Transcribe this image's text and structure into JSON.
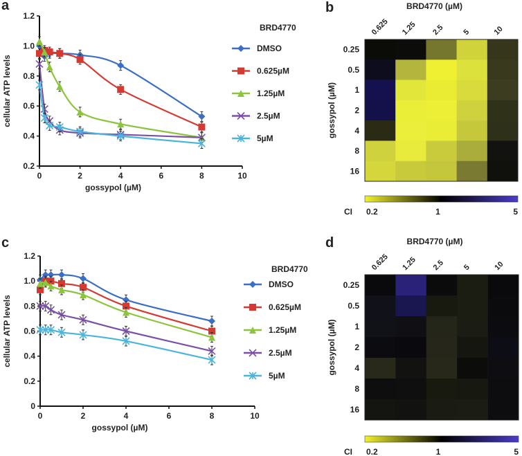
{
  "chart_data": [
    {
      "panel": "a",
      "type": "line",
      "xlabel": "gossypol (µM)",
      "ylabel": "cellular ATP levels",
      "xlim": [
        0,
        10
      ],
      "ylim": [
        0.2,
        1.2
      ],
      "xticks": [
        "0",
        "2",
        "4",
        "6",
        "8",
        "10"
      ],
      "yticks": [
        "0.2",
        "0.4",
        "0.6",
        "0.8",
        "1.0",
        "1.2"
      ],
      "legend_title": "BRD4770",
      "legend_position": "right",
      "x": [
        0,
        0.25,
        0.5,
        1,
        2,
        4,
        8
      ],
      "series": [
        {
          "name": "DMSO",
          "color": "#3a6fc4",
          "marker": "diamond",
          "values": [
            1.0,
            0.93,
            0.95,
            0.95,
            0.94,
            0.87,
            0.53
          ]
        },
        {
          "name": "0.625µM",
          "color": "#d43a32",
          "marker": "square",
          "values": [
            0.95,
            0.97,
            0.96,
            0.95,
            0.91,
            0.71,
            0.46
          ]
        },
        {
          "name": "1.25µM",
          "color": "#8cc43c",
          "marker": "triangle",
          "values": [
            1.03,
            0.96,
            0.86,
            0.73,
            0.56,
            0.48,
            0.39
          ]
        },
        {
          "name": "2.5µM",
          "color": "#7b4fa8",
          "marker": "x",
          "values": [
            0.88,
            0.58,
            0.5,
            0.44,
            0.42,
            0.41,
            0.39
          ]
        },
        {
          "name": "5µM",
          "color": "#4bb4dc",
          "marker": "star",
          "values": [
            0.74,
            0.52,
            0.47,
            0.46,
            0.43,
            0.4,
            0.35
          ]
        }
      ]
    },
    {
      "panel": "b",
      "type": "heatmap",
      "title": "BRD4770 (µM)",
      "ylabel": "gossypol (µM)",
      "columns": [
        "0.625",
        "1.25",
        "2.5",
        "5",
        "10"
      ],
      "rows": [
        "0.25",
        "0.5",
        "1",
        "2",
        "4",
        "8",
        "16"
      ],
      "colorbar_label": "CI",
      "colorbar_ticks": [
        "0.2",
        "1",
        "5"
      ],
      "colorbar_colors": [
        "#f2f22a",
        "#000000",
        "#4a3cc8"
      ],
      "cell_colors": [
        [
          "#0b0b08",
          "#0c0c0a",
          "#76772e",
          "#d0d33a",
          "#36361c"
        ],
        [
          "#0e0d1e",
          "#b4b53c",
          "#eef031",
          "#dde13c",
          "#393a1d"
        ],
        [
          "#14114e",
          "#e3e63a",
          "#eaec33",
          "#d8db3b",
          "#3c3d20"
        ],
        [
          "#13104a",
          "#ebee36",
          "#ecef35",
          "#cfd23c",
          "#303119"
        ],
        [
          "#2b2b15",
          "#ebee3a",
          "#eaed36",
          "#c6c83c",
          "#2f301a"
        ],
        [
          "#cfd23d",
          "#e8eb3c",
          "#c9cb3d",
          "#aaac3c",
          "#121210"
        ],
        [
          "#d4d63c",
          "#c8ca3c",
          "#c4c63c",
          "#7a7a33",
          "#10100c"
        ]
      ]
    },
    {
      "panel": "c",
      "type": "line",
      "xlabel": "gossypol (µM)",
      "ylabel": "cellular ATP levels",
      "xlim": [
        0,
        10
      ],
      "ylim": [
        0,
        1.2
      ],
      "xticks": [
        "0",
        "2",
        "4",
        "6",
        "8",
        "10"
      ],
      "yticks": [
        "0",
        "0.2",
        "0.4",
        "0.6",
        "0.8",
        "1.0",
        "1.2"
      ],
      "legend_title": "BRD4770",
      "legend_position": "right",
      "x": [
        0,
        0.25,
        0.5,
        1,
        2,
        4,
        8
      ],
      "series": [
        {
          "name": "DMSO",
          "color": "#3a6fc4",
          "marker": "diamond",
          "values": [
            1.01,
            1.05,
            1.05,
            1.05,
            1.02,
            0.85,
            0.68
          ]
        },
        {
          "name": "0.625µM",
          "color": "#d43a32",
          "marker": "square",
          "values": [
            0.93,
            1.0,
            1.0,
            0.98,
            0.95,
            0.8,
            0.6
          ]
        },
        {
          "name": "1.25µM",
          "color": "#8cc43c",
          "marker": "triangle",
          "values": [
            0.98,
            0.99,
            0.96,
            0.93,
            0.89,
            0.75,
            0.55
          ]
        },
        {
          "name": "2.5µM",
          "color": "#7b4fa8",
          "marker": "x",
          "values": [
            0.8,
            0.8,
            0.77,
            0.73,
            0.69,
            0.6,
            0.44
          ]
        },
        {
          "name": "5µM",
          "color": "#4bb4dc",
          "marker": "star",
          "values": [
            0.61,
            0.61,
            0.61,
            0.59,
            0.57,
            0.52,
            0.37
          ]
        }
      ]
    },
    {
      "panel": "d",
      "type": "heatmap",
      "title": "BRD4770 (µM)",
      "ylabel": "gossypol (µM)",
      "columns": [
        "0.625",
        "1.25",
        "2.5",
        "5",
        "10"
      ],
      "rows": [
        "0.25",
        "0.5",
        "1",
        "2",
        "4",
        "8",
        "16"
      ],
      "colorbar_label": "CI",
      "colorbar_ticks": [
        "0.2",
        "1",
        "5"
      ],
      "colorbar_colors": [
        "#f2f22a",
        "#000000",
        "#4a3cc8"
      ],
      "cell_colors": [
        [
          "#0a0a0c",
          "#2a2278",
          "#0b0b0b",
          "#1c1d12",
          "#0a0a0d"
        ],
        [
          "#111119",
          "#1a1650",
          "#18190f",
          "#1b1c12",
          "#0b0b0e"
        ],
        [
          "#111118",
          "#101014",
          "#25261a",
          "#1b1c13",
          "#0b0b10"
        ],
        [
          "#0c0c10",
          "#0a0a0e",
          "#26271a",
          "#15160f",
          "#0d0d16"
        ],
        [
          "#28291a",
          "#121310",
          "#27281a",
          "#0c0c0b",
          "#0d0d12"
        ],
        [
          "#0e0e0e",
          "#0f0f0f",
          "#18190f",
          "#171810",
          "#0d0d10"
        ],
        [
          "#141410",
          "#121210",
          "#1a1b12",
          "#1b1c13",
          "#0d0d10"
        ]
      ]
    }
  ]
}
